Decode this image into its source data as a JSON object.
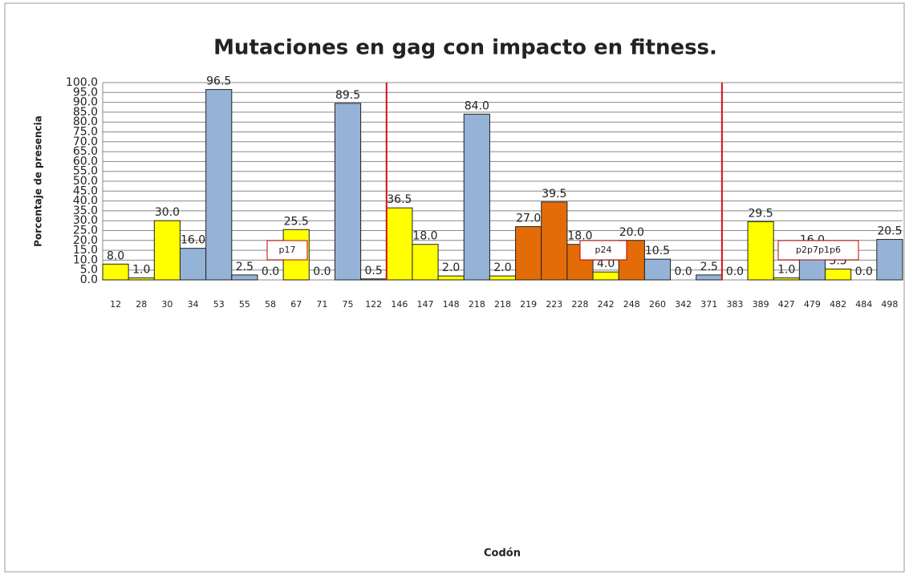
{
  "chart_data": {
    "type": "bar",
    "title": "Mutaciones en gag con impacto en fitness.",
    "x_label": "Codón",
    "y_label": "Porcentaje de presencia",
    "categories": [
      "12",
      "28",
      "30",
      "34",
      "53",
      "55",
      "58",
      "67",
      "71",
      "75",
      "122",
      "146",
      "147",
      "148",
      "218",
      "218",
      "219",
      "223",
      "228",
      "242",
      "248",
      "260",
      "342",
      "371",
      "383",
      "389",
      "427",
      "479",
      "482",
      "484",
      "498"
    ],
    "values": [
      8.0,
      1.0,
      30.0,
      16.0,
      96.5,
      2.5,
      0.0,
      25.5,
      0.0,
      89.5,
      0.5,
      36.5,
      18.0,
      2.0,
      84.0,
      2.0,
      27.0,
      39.5,
      18.0,
      4.0,
      20.0,
      10.5,
      0.0,
      2.5,
      0.0,
      29.5,
      1.0,
      16.0,
      5.5,
      0.0,
      20.5
    ],
    "value_labels": [
      "8.0",
      "1.0",
      "30.0",
      "16.0",
      "96.5",
      "2.5",
      "0.0",
      "25.5",
      "0.0",
      "89.5",
      "0.5",
      "36.5",
      "18.0",
      "2.0",
      "84.0",
      "2.0",
      "27.0",
      "39.5",
      "18.0",
      "4.0",
      "20.0",
      "10.5",
      "0.0",
      "2.5",
      "0.0",
      "29.5",
      "1.0",
      "16.0",
      "5.5",
      "0.0",
      "20.5"
    ],
    "colors": [
      "#ffff00",
      "#ffff00",
      "#ffff00",
      "#95b3d7",
      "#95b3d7",
      "#95b3d7",
      "#95b3d7",
      "#ffff00",
      "#ffff00",
      "#95b3d7",
      "#95b3d7",
      "#ffff00",
      "#ffff00",
      "#ffff00",
      "#95b3d7",
      "#ffff00",
      "#e36c09",
      "#e36c09",
      "#e36c09",
      "#ffff00",
      "#e36c09",
      "#95b3d7",
      "#95b3d7",
      "#95b3d7",
      "#ffff00",
      "#ffff00",
      "#ffff00",
      "#95b3d7",
      "#ffff00",
      "#95b3d7",
      "#95b3d7"
    ],
    "ylim": [
      0,
      100
    ],
    "yticks": [
      {
        "value": 0,
        "label": "0.0"
      },
      {
        "value": 5,
        "label": "5.0"
      },
      {
        "value": 10,
        "label": "10.0"
      },
      {
        "value": 15,
        "label": "15.0"
      },
      {
        "value": 20,
        "label": "20.0"
      },
      {
        "value": 25,
        "label": "25.0"
      },
      {
        "value": 30,
        "label": "30.0"
      },
      {
        "value": 35,
        "label": "35.0"
      },
      {
        "value": 40,
        "label": "40.0"
      },
      {
        "value": 45,
        "label": "45.0"
      },
      {
        "value": 50,
        "label": "50.0"
      },
      {
        "value": 55,
        "label": "55.0"
      },
      {
        "value": 60,
        "label": "60.0"
      },
      {
        "value": 65,
        "label": "65.0"
      },
      {
        "value": 70,
        "label": "70.0"
      },
      {
        "value": 75,
        "label": "75.0"
      },
      {
        "value": 80,
        "label": "80.0"
      },
      {
        "value": 85,
        "label": "85.0"
      },
      {
        "value": 90,
        "label": "90.0"
      },
      {
        "value": 95,
        "label": "95.0"
      },
      {
        "value": 100,
        "label": "100.0"
      }
    ],
    "grid": true,
    "annotations": [
      "p17",
      "p24",
      "p2p7p1p6"
    ]
  }
}
